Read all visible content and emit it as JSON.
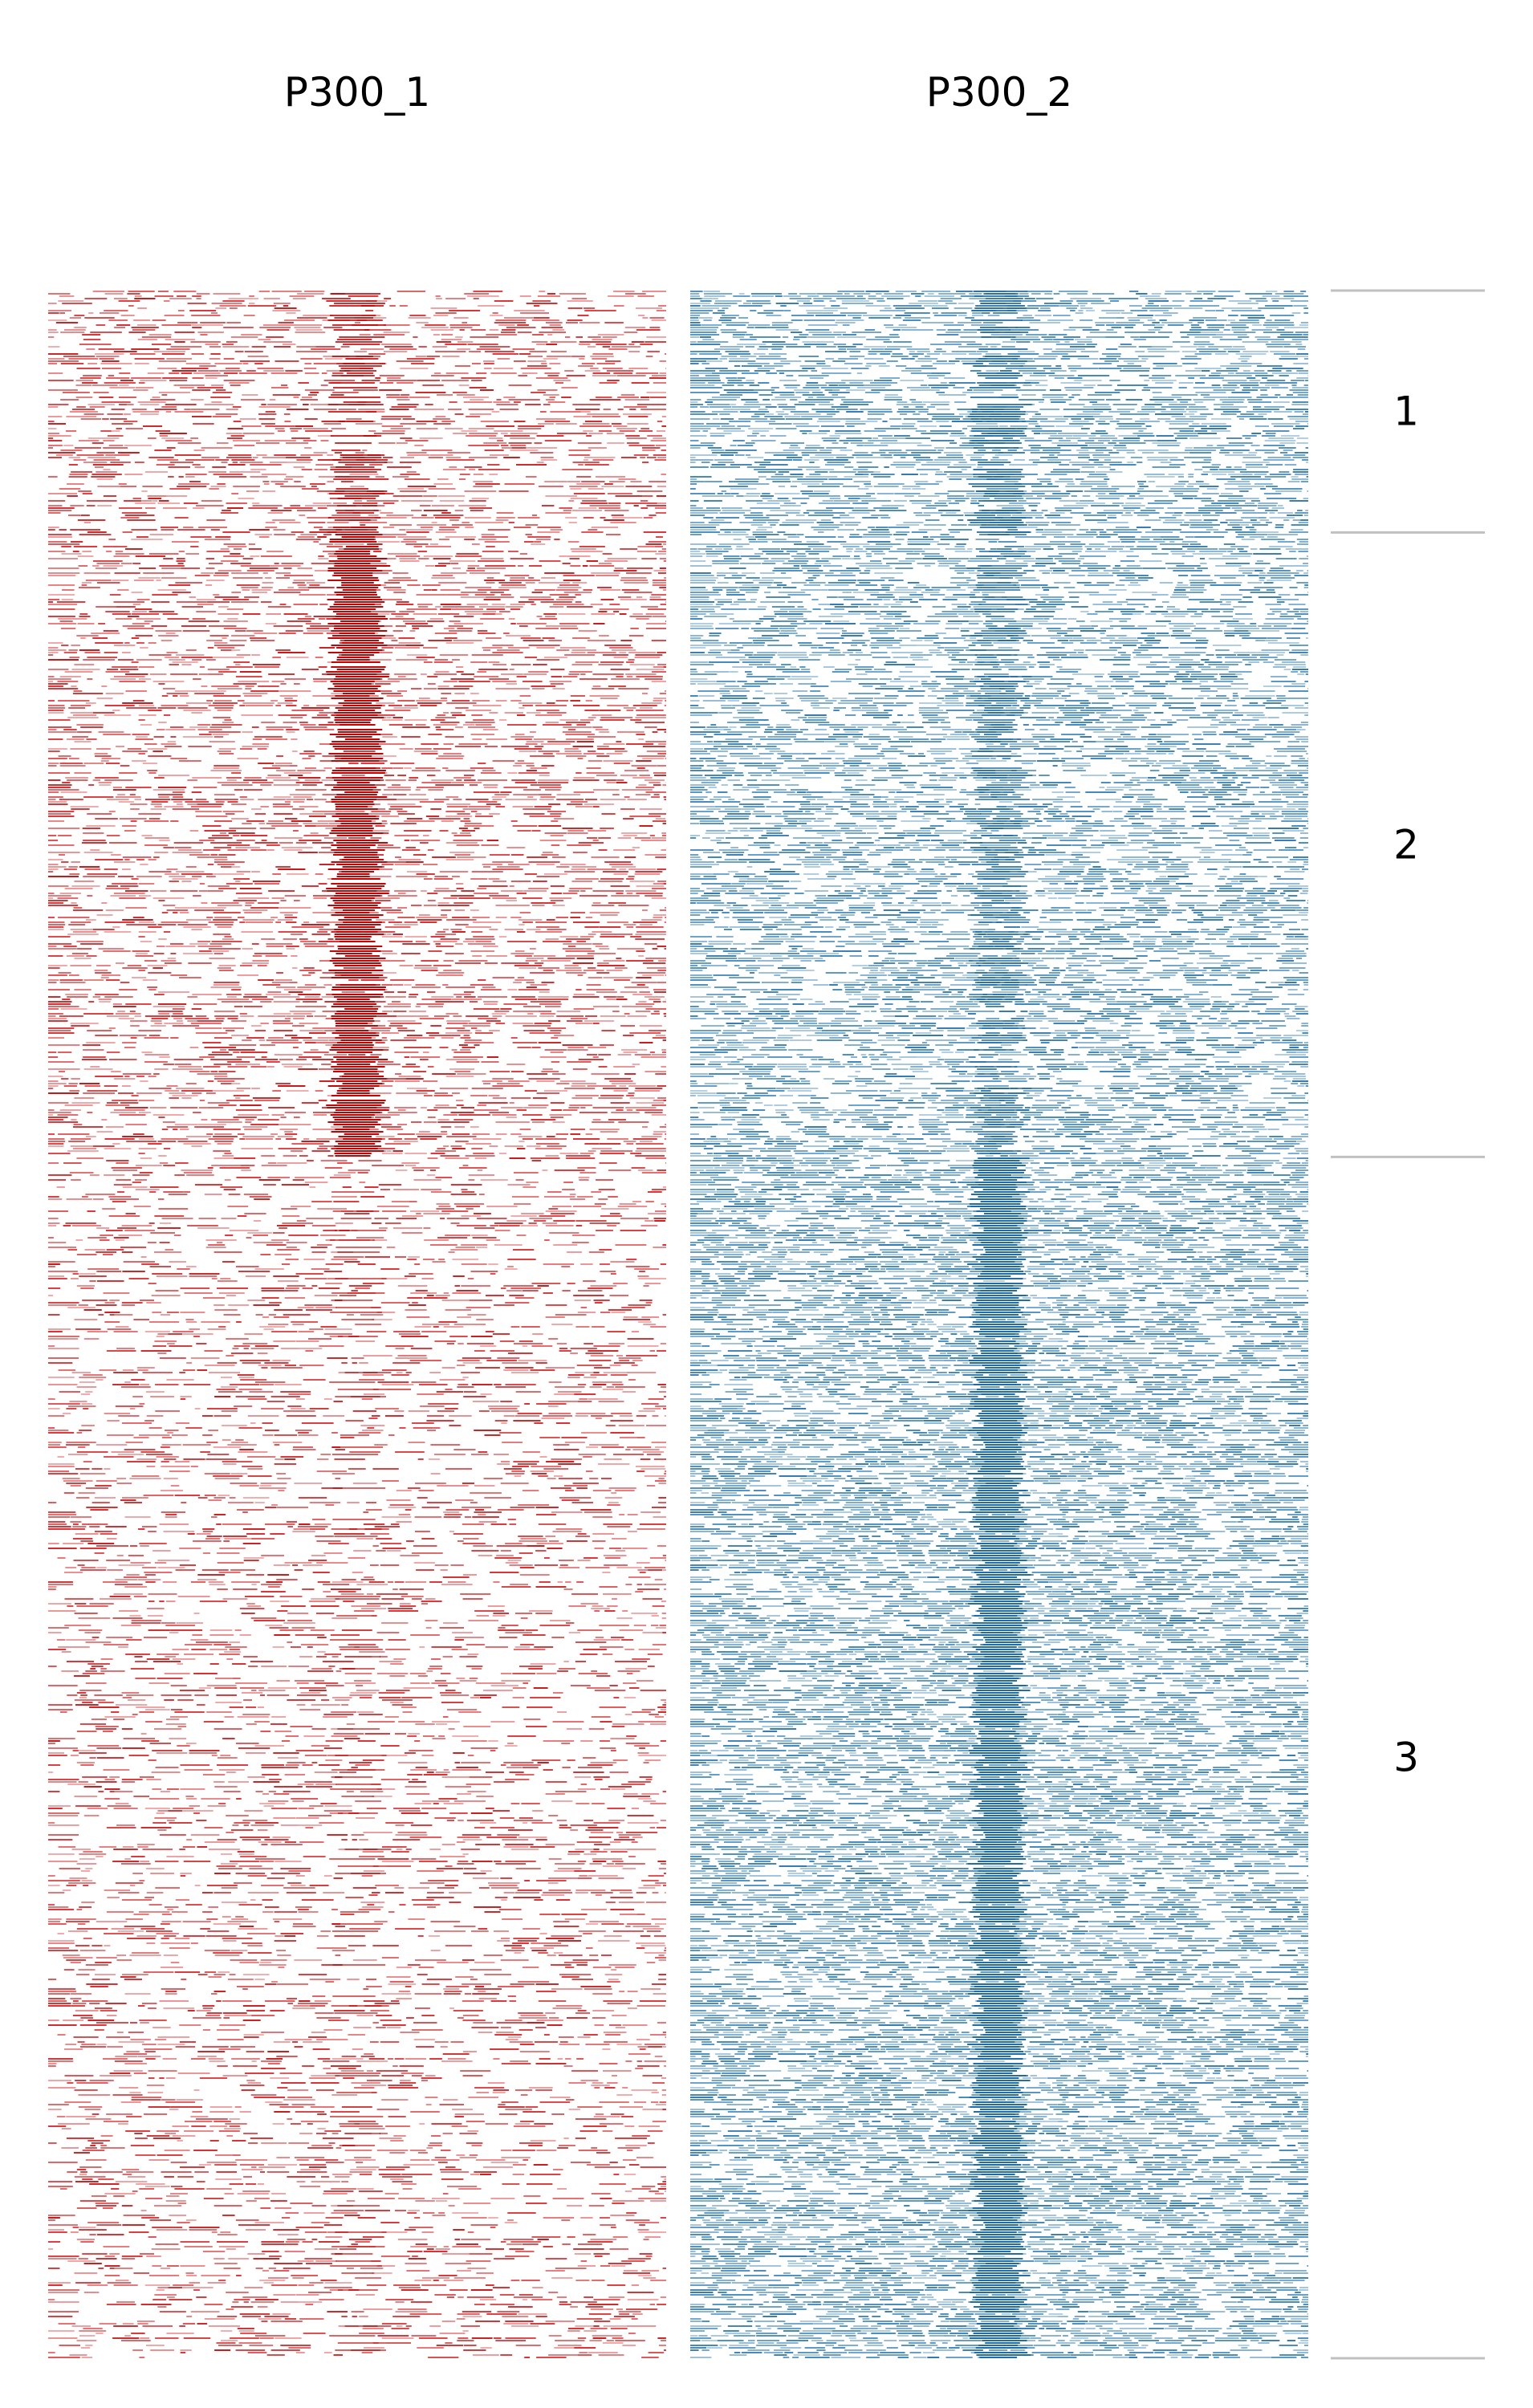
{
  "chart_data": {
    "type": "heatmap",
    "description_level": "binarized enrichment heatmap around peak centers",
    "panels": [
      {
        "name": "P300_1",
        "color": "#d7191c",
        "color_strong": "#c40000",
        "cluster_signal": [
          {
            "cluster": "1",
            "center_intensity": 0.55,
            "background_density": 0.42
          },
          {
            "cluster": "2",
            "center_intensity": 0.95,
            "background_density": 0.45
          },
          {
            "cluster": "3",
            "center_intensity": 0.12,
            "background_density": 0.3
          }
        ]
      },
      {
        "name": "P300_2",
        "color": "#2c7bb6",
        "color_strong": "#1f6aa8",
        "cluster_signal": [
          {
            "cluster": "1",
            "center_intensity": 0.7,
            "background_density": 0.62
          },
          {
            "cluster": "2",
            "center_intensity": 0.45,
            "background_density": 0.58
          },
          {
            "cluster": "3",
            "center_intensity": 0.95,
            "background_density": 0.68
          }
        ]
      }
    ],
    "clusters": [
      {
        "label": "1",
        "row_fraction": 0.117
      },
      {
        "label": "2",
        "row_fraction": 0.302
      },
      {
        "label": "3",
        "row_fraction": 0.581
      }
    ],
    "grid": false,
    "legend": "none"
  }
}
